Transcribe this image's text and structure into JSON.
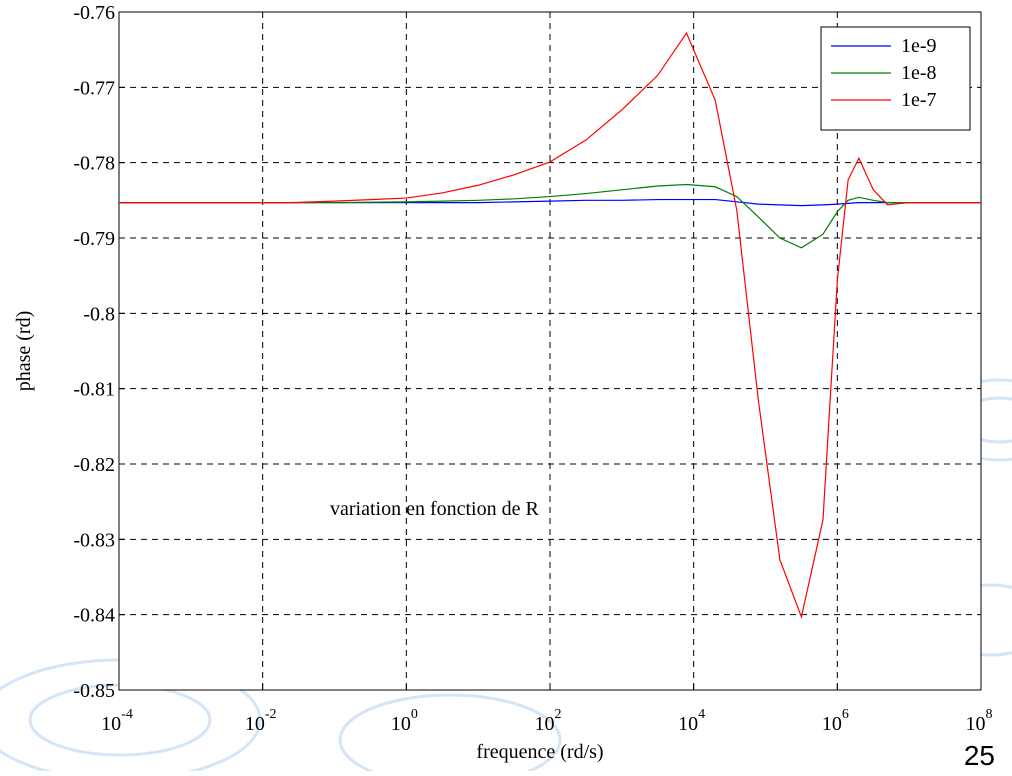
{
  "chart_data": {
    "type": "line",
    "x_label": "frequence (rd/s)",
    "y_label": "phase (rd)",
    "annotation": "variation en fonction de R",
    "slide_number": "25",
    "xscale": "log",
    "grid": true,
    "legend": "upper right",
    "xlim": [
      0.0001,
      100000000
    ],
    "xticks": [
      {
        "value": 0.0001,
        "label": "10",
        "exponent": "-4"
      },
      {
        "value": 0.01,
        "label": "10",
        "exponent": "-2"
      },
      {
        "value": 1,
        "label": "10",
        "exponent": "0"
      },
      {
        "value": 100,
        "label": "10",
        "exponent": "2"
      },
      {
        "value": 10000,
        "label": "10",
        "exponent": "4"
      },
      {
        "value": 1000000,
        "label": "10",
        "exponent": "6"
      },
      {
        "value": 100000000,
        "label": "10",
        "exponent": "8"
      }
    ],
    "ylim": [
      -0.85,
      -0.76
    ],
    "yticks": [
      -0.85,
      -0.84,
      -0.83,
      -0.82,
      -0.81,
      -0.8,
      -0.79,
      -0.78,
      -0.77,
      -0.76
    ],
    "x": [
      0.0001,
      0.01,
      0.025,
      0.1,
      1,
      3.2,
      10,
      32,
      100,
      316,
      1000,
      3162,
      7943,
      19953,
      39811,
      79433,
      158489,
      316228,
      630957,
      1000000,
      1412538,
      1995262,
      3162278,
      5011872,
      10000000,
      100000000
    ],
    "series": [
      {
        "name": "1e-9",
        "color": "#0000ff",
        "values": [
          -0.7853,
          -0.7853,
          -0.7853,
          -0.7853,
          -0.7853,
          -0.7853,
          -0.7853,
          -0.7852,
          -0.7851,
          -0.785,
          -0.785,
          -0.7849,
          -0.7849,
          -0.7849,
          -0.7852,
          -0.7855,
          -0.7856,
          -0.7857,
          -0.7856,
          -0.7855,
          -0.7854,
          -0.7853,
          -0.7853,
          -0.7853,
          -0.7853,
          -0.7853
        ]
      },
      {
        "name": "1e-8",
        "color": "#008000",
        "values": [
          -0.7853,
          -0.7853,
          -0.7853,
          -0.7853,
          -0.7852,
          -0.7851,
          -0.785,
          -0.7848,
          -0.7845,
          -0.7841,
          -0.7836,
          -0.7831,
          -0.7829,
          -0.7832,
          -0.7845,
          -0.7872,
          -0.79,
          -0.7913,
          -0.7895,
          -0.7865,
          -0.785,
          -0.7846,
          -0.785,
          -0.7853,
          -0.7853,
          -0.7853
        ]
      },
      {
        "name": "1e-7",
        "color": "#ff0000",
        "values": [
          -0.7853,
          -0.7853,
          -0.7853,
          -0.7851,
          -0.7847,
          -0.784,
          -0.783,
          -0.7816,
          -0.7799,
          -0.777,
          -0.773,
          -0.7684,
          -0.7628,
          -0.7717,
          -0.7863,
          -0.8115,
          -0.8327,
          -0.8403,
          -0.8274,
          -0.7956,
          -0.7823,
          -0.7794,
          -0.7836,
          -0.7856,
          -0.7853,
          -0.7853
        ]
      }
    ]
  }
}
